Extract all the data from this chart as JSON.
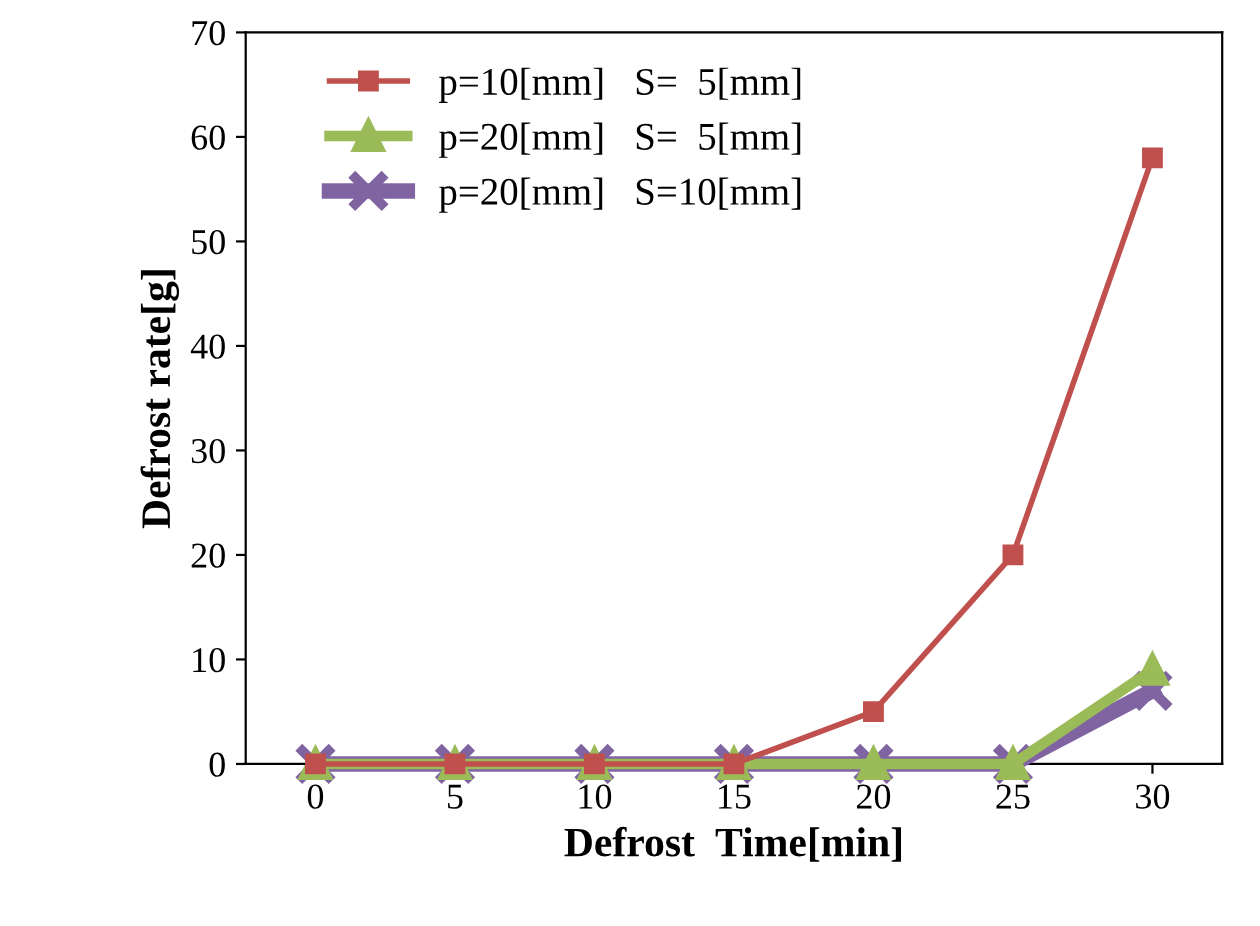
{
  "chart_data": {
    "type": "line",
    "xlabel": "Defrost  Time[min]",
    "ylabel": "Defrost rate[g]",
    "categories": [
      "0",
      "5",
      "10",
      "15",
      "20",
      "25",
      "30"
    ],
    "series": [
      {
        "name": "p=10[mm]   S=  5[mm]",
        "color": "#c0504d",
        "marker": "square",
        "values": [
          0,
          0,
          0,
          0,
          5,
          20,
          58
        ]
      },
      {
        "name": "p=20[mm]   S=  5[mm]",
        "color": "#9bbb59",
        "marker": "triangle",
        "values": [
          0,
          0,
          0,
          0,
          0,
          0,
          9
        ]
      },
      {
        "name": "p=20[mm]   S=10[mm]",
        "color": "#8064a2",
        "marker": "cross",
        "values": [
          0,
          0,
          0,
          0,
          0,
          0,
          7
        ]
      }
    ],
    "ylim": [
      0,
      70
    ],
    "yticks": [
      0,
      10,
      20,
      30,
      40,
      50,
      60,
      70
    ],
    "grid": false,
    "legend": "top left",
    "line_style": "solid"
  }
}
